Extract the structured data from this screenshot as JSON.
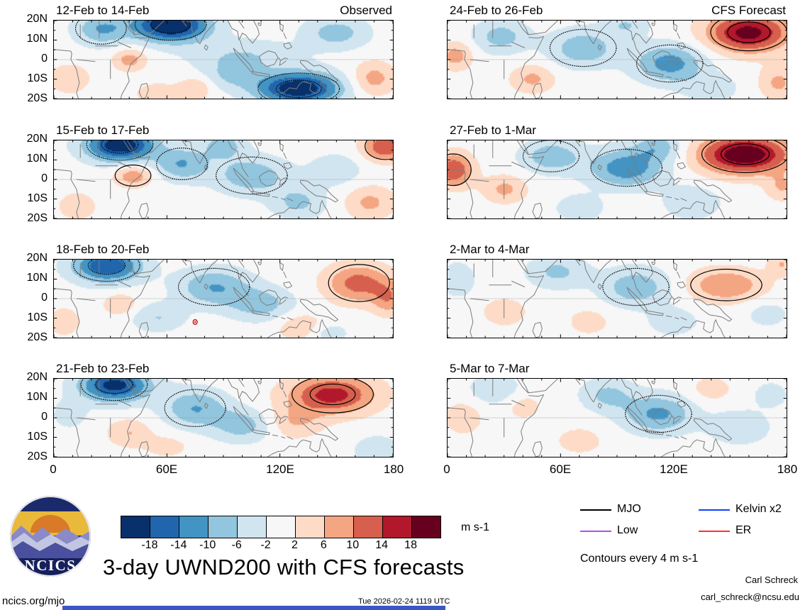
{
  "figure": {
    "title": "3-day UWND200 with CFS forecasts",
    "footer_left": "ncics.org/mjo",
    "footer_center": "Tue 2026-02-24 1119 UTC",
    "credit_name": "Carl Schreck",
    "credit_email": "carl_schreck@ncsu.edu",
    "contours_note": "Contours every 4 m s-1",
    "units": "m s-1",
    "logo_text": "NCICS"
  },
  "legend": {
    "items": [
      {
        "label": "MJO",
        "color": "#000000"
      },
      {
        "label": "Kelvin x2",
        "color": "#1040ff"
      },
      {
        "label": "Low",
        "color": "#b050f0"
      },
      {
        "label": "ER",
        "color": "#ff3030"
      }
    ]
  },
  "colorbar": {
    "labels": [
      "-18",
      "-14",
      "-10",
      "-6",
      "-2",
      "2",
      "6",
      "10",
      "14",
      "18"
    ],
    "colors": [
      "#08306b",
      "#2166ac",
      "#4393c3",
      "#92c5de",
      "#d1e5f0",
      "#f7f7f7",
      "#fddbc7",
      "#f4a582",
      "#d6604d",
      "#b2182b",
      "#67001f"
    ]
  },
  "chart_data": {
    "type": "heatmap",
    "title": "3-day UWND200 with CFS forecasts",
    "variable": "200-hPa zonal wind anomaly",
    "units": "m s-1",
    "contour_interval": 4,
    "lon_range": [
      0,
      180
    ],
    "lat_range": [
      -20,
      20
    ],
    "x_ticks": [
      "0",
      "60E",
      "120E",
      "180"
    ],
    "y_ticks": [
      "20N",
      "10N",
      "0",
      "10S",
      "20S"
    ],
    "columns": [
      "Observed",
      "CFS Forecast"
    ],
    "panels": [
      {
        "title": "12-Feb to 14-Feb",
        "corner_label": "Observed",
        "blobs": [
          [
            62,
            18,
            14,
            6,
            -24
          ],
          [
            25,
            16,
            10,
            6,
            -10
          ],
          [
            150,
            14,
            12,
            6,
            -8
          ],
          [
            100,
            2,
            20,
            6,
            -6
          ],
          [
            130,
            -15,
            16,
            6,
            -22
          ],
          [
            95,
            -8,
            10,
            5,
            -6
          ],
          [
            40,
            0,
            6,
            4,
            8
          ],
          [
            8,
            -10,
            7,
            5,
            6
          ],
          [
            75,
            -15,
            6,
            4,
            6
          ],
          [
            170,
            -10,
            8,
            6,
            8
          ],
          [
            55,
            -18,
            8,
            4,
            5
          ]
        ]
      },
      {
        "title": "15-Feb to 17-Feb",
        "corner_label": "",
        "blobs": [
          [
            35,
            18,
            13,
            6,
            -22
          ],
          [
            68,
            8,
            10,
            6,
            -10
          ],
          [
            105,
            2,
            14,
            7,
            -9
          ],
          [
            130,
            -12,
            10,
            6,
            -7
          ],
          [
            176,
            17,
            8,
            5,
            14
          ],
          [
            168,
            -12,
            9,
            6,
            7
          ],
          [
            42,
            2,
            7,
            4,
            9
          ],
          [
            12,
            -14,
            7,
            5,
            5
          ],
          [
            90,
            18,
            8,
            5,
            -8
          ],
          [
            150,
            5,
            10,
            6,
            -5
          ]
        ]
      },
      {
        "title": "18-Feb to 20-Feb",
        "corner_label": "",
        "blobs": [
          [
            28,
            17,
            13,
            6,
            -18
          ],
          [
            85,
            6,
            14,
            7,
            -10
          ],
          [
            110,
            -3,
            12,
            6,
            -8
          ],
          [
            55,
            -10,
            10,
            5,
            -6
          ],
          [
            162,
            8,
            12,
            7,
            12
          ],
          [
            178,
            0,
            6,
            6,
            8
          ],
          [
            132,
            -15,
            9,
            5,
            6
          ],
          [
            35,
            -3,
            6,
            4,
            6
          ],
          [
            5,
            -12,
            6,
            5,
            5
          ],
          [
            145,
            -18,
            8,
            4,
            -5
          ]
        ],
        "marker": {
          "lon": 75,
          "lat": -12,
          "type": "tropical-cyclone",
          "color": "#cc0000"
        }
      },
      {
        "title": "21-Feb to 23-Feb",
        "corner_label": "",
        "blobs": [
          [
            32,
            17,
            13,
            6,
            -20
          ],
          [
            75,
            5,
            12,
            7,
            -10
          ],
          [
            100,
            -4,
            11,
            6,
            -8
          ],
          [
            148,
            12,
            16,
            7,
            16
          ],
          [
            128,
            -2,
            10,
            6,
            6
          ],
          [
            40,
            -8,
            8,
            5,
            6
          ],
          [
            172,
            -17,
            8,
            5,
            -6
          ],
          [
            8,
            2,
            6,
            5,
            -5
          ],
          [
            60,
            -15,
            8,
            4,
            4
          ]
        ]
      },
      {
        "title": "24-Feb to 26-Feb",
        "corner_label": "CFS Forecast",
        "blobs": [
          [
            160,
            14,
            15,
            7,
            20
          ],
          [
            118,
            -2,
            13,
            7,
            -12
          ],
          [
            72,
            6,
            13,
            7,
            -9
          ],
          [
            28,
            12,
            10,
            6,
            -8
          ],
          [
            4,
            2,
            6,
            5,
            8
          ],
          [
            45,
            -10,
            8,
            5,
            7
          ],
          [
            176,
            -12,
            7,
            6,
            7
          ],
          [
            95,
            18,
            8,
            4,
            -6
          ],
          [
            140,
            -15,
            10,
            5,
            -5
          ]
        ]
      },
      {
        "title": "27-Feb to 1-Mar",
        "corner_label": "",
        "blobs": [
          [
            158,
            13,
            17,
            7,
            22
          ],
          [
            95,
            6,
            14,
            7,
            -13
          ],
          [
            55,
            12,
            11,
            6,
            -9
          ],
          [
            112,
            17,
            9,
            5,
            -8
          ],
          [
            3,
            5,
            7,
            6,
            14
          ],
          [
            30,
            -5,
            8,
            5,
            7
          ],
          [
            130,
            -12,
            10,
            6,
            -6
          ],
          [
            178,
            -4,
            6,
            5,
            6
          ],
          [
            70,
            -15,
            9,
            5,
            -5
          ]
        ]
      },
      {
        "title": "2-Mar to 4-Mar",
        "corner_label": "",
        "blobs": [
          [
            148,
            7,
            14,
            6,
            10
          ],
          [
            100,
            6,
            13,
            7,
            -9
          ],
          [
            58,
            14,
            11,
            6,
            -7
          ],
          [
            5,
            10,
            6,
            6,
            -6
          ],
          [
            30,
            -7,
            8,
            5,
            5
          ],
          [
            120,
            -12,
            9,
            5,
            -5
          ],
          [
            178,
            18,
            5,
            4,
            6
          ],
          [
            75,
            -12,
            8,
            5,
            4
          ],
          [
            170,
            -8,
            8,
            5,
            -4
          ]
        ]
      },
      {
        "title": "5-Mar to 7-Mar",
        "corner_label": "",
        "blobs": [
          [
            112,
            2,
            13,
            7,
            -11
          ],
          [
            85,
            12,
            10,
            6,
            -7
          ],
          [
            25,
            15,
            10,
            6,
            -5
          ],
          [
            8,
            0,
            7,
            6,
            5
          ],
          [
            155,
            -5,
            11,
            6,
            -6
          ],
          [
            140,
            15,
            8,
            5,
            4
          ],
          [
            70,
            -12,
            9,
            5,
            4
          ],
          [
            40,
            6,
            7,
            5,
            4
          ],
          [
            172,
            12,
            7,
            5,
            -4
          ]
        ]
      }
    ]
  }
}
